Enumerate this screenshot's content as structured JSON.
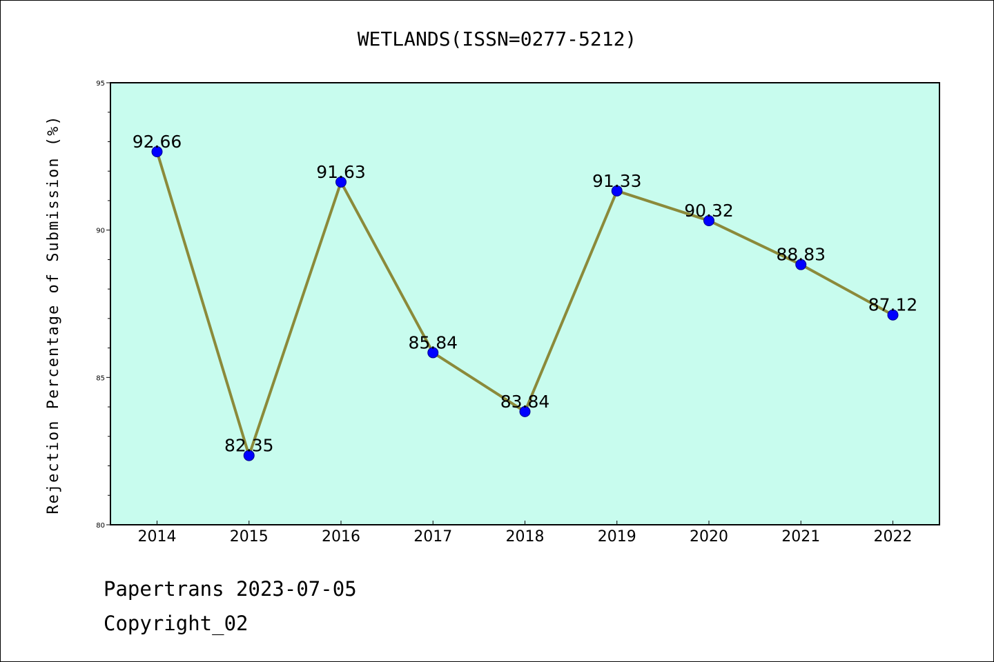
{
  "chart_data": {
    "type": "line",
    "title": "WETLANDS(ISSN=0277-5212)",
    "xlabel": "",
    "ylabel": "Rejection Percentage of Submission (%)",
    "categories": [
      "2014",
      "2015",
      "2016",
      "2017",
      "2018",
      "2019",
      "2020",
      "2021",
      "2022"
    ],
    "series": [
      {
        "values": [
          92.66,
          82.35,
          91.63,
          85.84,
          83.84,
          91.33,
          90.32,
          88.83,
          87.12
        ]
      }
    ],
    "data_labels": [
      "92.66",
      "82.35",
      "91.63",
      "85.84",
      "83.84",
      "91.33",
      "90.32",
      "88.83",
      "87.12"
    ],
    "ylim": [
      80,
      95
    ],
    "yticks": [
      "80",
      "85",
      "90",
      "95"
    ],
    "grid": false,
    "legend": "none",
    "colors": {
      "plot_background": "#c8fcee",
      "line": "#8b8a3a",
      "marker": "#0000ff",
      "marker_edge": "#00008b"
    }
  },
  "footer": {
    "line1": "Papertrans 2023-07-05",
    "line2": "Copyright_02"
  }
}
